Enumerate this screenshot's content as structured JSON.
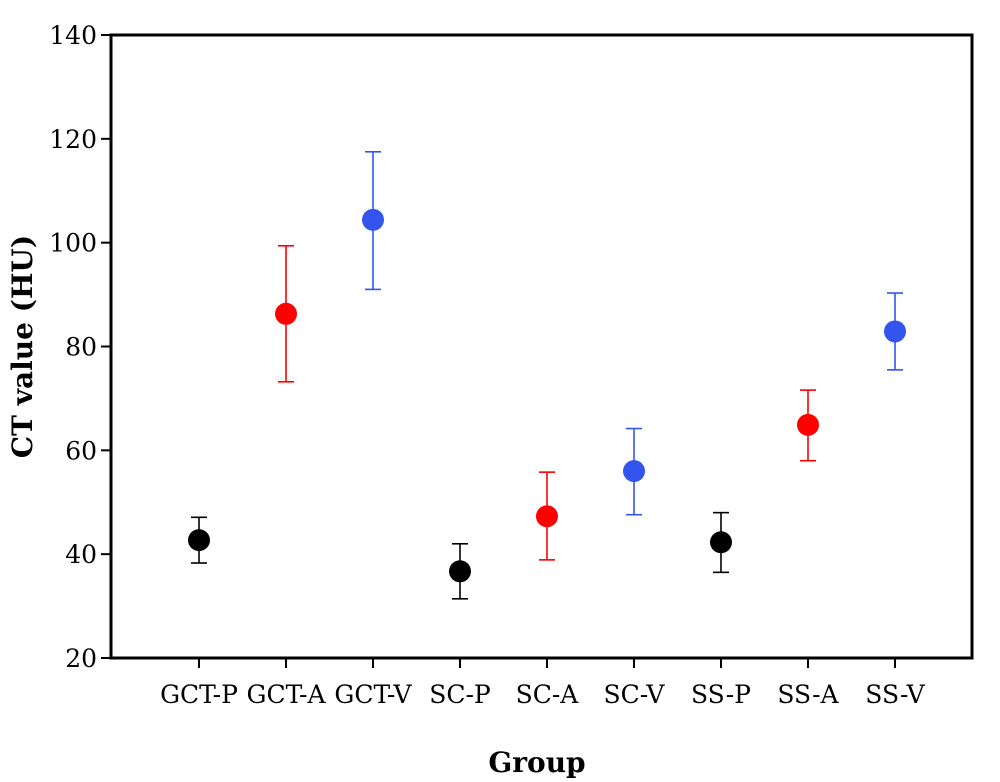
{
  "chart_data": {
    "type": "scatter",
    "title": "",
    "xlabel": "Group",
    "ylabel": "CT value (HU)",
    "ylim": [
      20,
      140
    ],
    "yticks": [
      20,
      40,
      60,
      80,
      100,
      120,
      140
    ],
    "grid": false,
    "legend": "none",
    "categories": [
      "GCT-P",
      "GCT-A",
      "GCT-V",
      "SC-P",
      "SC-A",
      "SC-V",
      "SS-P",
      "SS-A",
      "SS-V"
    ],
    "points": [
      {
        "category": "GCT-P",
        "mean": 42.7,
        "lower": 38.3,
        "upper": 47.1,
        "color": "#000000"
      },
      {
        "category": "GCT-A",
        "mean": 86.3,
        "lower": 73.2,
        "upper": 99.4,
        "color": "#ff0000"
      },
      {
        "category": "GCT-V",
        "mean": 104.4,
        "lower": 91.0,
        "upper": 117.5,
        "color": "#3355ee"
      },
      {
        "category": "SC-P",
        "mean": 36.7,
        "lower": 31.4,
        "upper": 42.0,
        "color": "#000000"
      },
      {
        "category": "SC-A",
        "mean": 47.3,
        "lower": 38.9,
        "upper": 55.8,
        "color": "#ff0000"
      },
      {
        "category": "SC-V",
        "mean": 56.0,
        "lower": 47.6,
        "upper": 64.2,
        "color": "#3355ee"
      },
      {
        "category": "SS-P",
        "mean": 42.3,
        "lower": 36.5,
        "upper": 48.0,
        "color": "#000000"
      },
      {
        "category": "SS-A",
        "mean": 64.9,
        "lower": 58.0,
        "upper": 71.6,
        "color": "#ff0000"
      },
      {
        "category": "SS-V",
        "mean": 82.9,
        "lower": 75.5,
        "upper": 90.3,
        "color": "#3355ee"
      }
    ]
  }
}
